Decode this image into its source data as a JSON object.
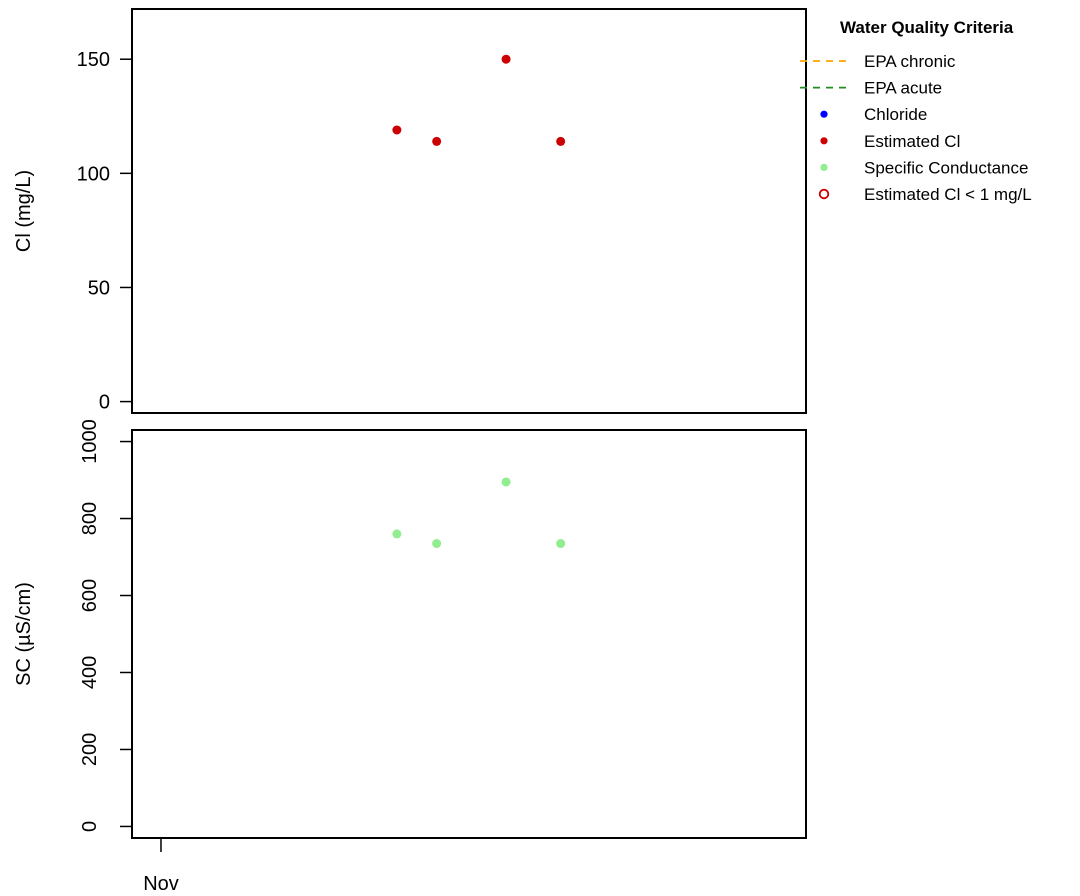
{
  "chart_data": [
    {
      "type": "scatter",
      "ylabel": "Cl (mg/L)",
      "ylim": [
        -5,
        172
      ],
      "yticks": [
        0,
        50,
        100,
        150
      ],
      "x_ticks": [],
      "series": [
        {
          "name": "Estimated Cl",
          "color": "#cc0000",
          "points": [
            {
              "x": 0.393,
              "y": 119
            },
            {
              "x": 0.452,
              "y": 114
            },
            {
              "x": 0.555,
              "y": 150
            },
            {
              "x": 0.636,
              "y": 114
            }
          ]
        }
      ]
    },
    {
      "type": "scatter",
      "ylabel": "SC (µS/cm)",
      "ylim": [
        -30,
        1030
      ],
      "yticks": [
        0,
        200,
        400,
        600,
        800,
        1000
      ],
      "x_ticks": [
        {
          "x": 0.043,
          "label": "Nov"
        }
      ],
      "series": [
        {
          "name": "Specific Conductance",
          "color": "#90ee90",
          "points": [
            {
              "x": 0.393,
              "y": 760
            },
            {
              "x": 0.452,
              "y": 735
            },
            {
              "x": 0.555,
              "y": 895
            },
            {
              "x": 0.636,
              "y": 735
            }
          ]
        }
      ]
    }
  ],
  "legend": {
    "title": "Water Quality Criteria",
    "entries": [
      {
        "label": "EPA chronic",
        "kind": "dash",
        "color": "#ffa500"
      },
      {
        "label": "EPA acute",
        "kind": "dash",
        "color": "#228b22"
      },
      {
        "label": "Chloride",
        "kind": "dot",
        "color": "#0000ff"
      },
      {
        "label": "Estimated Cl",
        "kind": "dot",
        "color": "#cc0000"
      },
      {
        "label": "Specific Conductance",
        "kind": "dot",
        "color": "#90ee90"
      },
      {
        "label": "Estimated Cl < 1 mg/L",
        "kind": "ring",
        "color": "#cc0000"
      }
    ]
  }
}
